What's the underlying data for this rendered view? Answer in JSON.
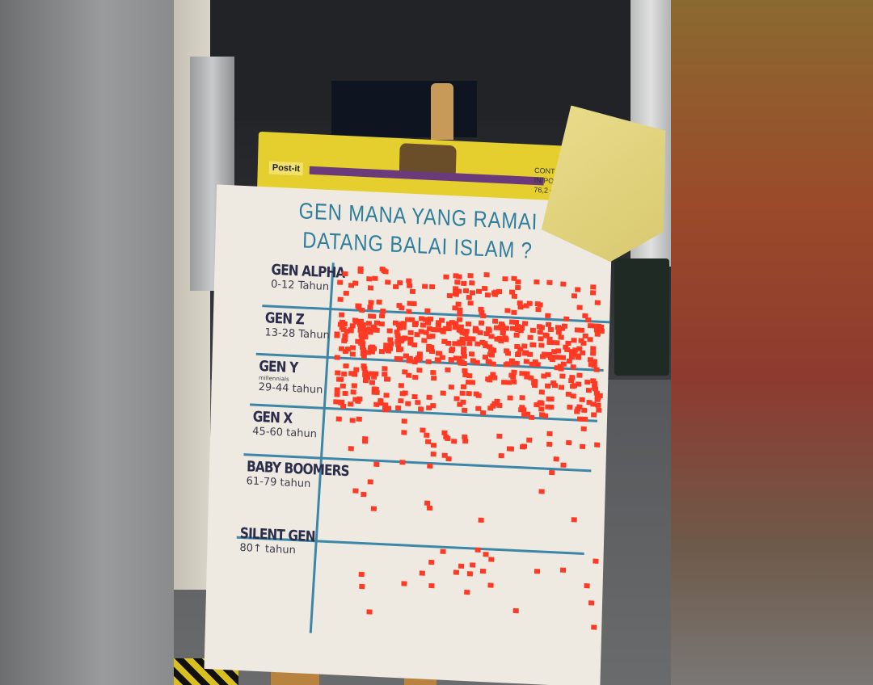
{
  "chart_sheet": {
    "brand_logo": "Post-it",
    "header_info": "CONT 30 SH 25 IN/PO 63,5 cm x 76,2 cm",
    "title_line1": "GEN MANA YANG RAMAI",
    "title_line2": "DATANG BALAI ISLAM ?",
    "rows": [
      {
        "gen": "GEN ALPHA",
        "age": "0-12 Tahun",
        "note": ""
      },
      {
        "gen": "GEN Z",
        "age": "13-28 Tahun",
        "note": ""
      },
      {
        "gen": "GEN Y",
        "age": "29-44 tahun",
        "note": "millennials"
      },
      {
        "gen": "GEN X",
        "age": "45-60 tahun",
        "note": ""
      },
      {
        "gen": "BABY BOOMERS",
        "age": "61-79 tahun",
        "note": ""
      },
      {
        "gen": "SILENT GEN",
        "age": "80↑ tahun",
        "note": ""
      }
    ],
    "sticker_color": "#ff3a24",
    "line_color": "#3d86a8",
    "paper_color": "#eeeae2"
  }
}
